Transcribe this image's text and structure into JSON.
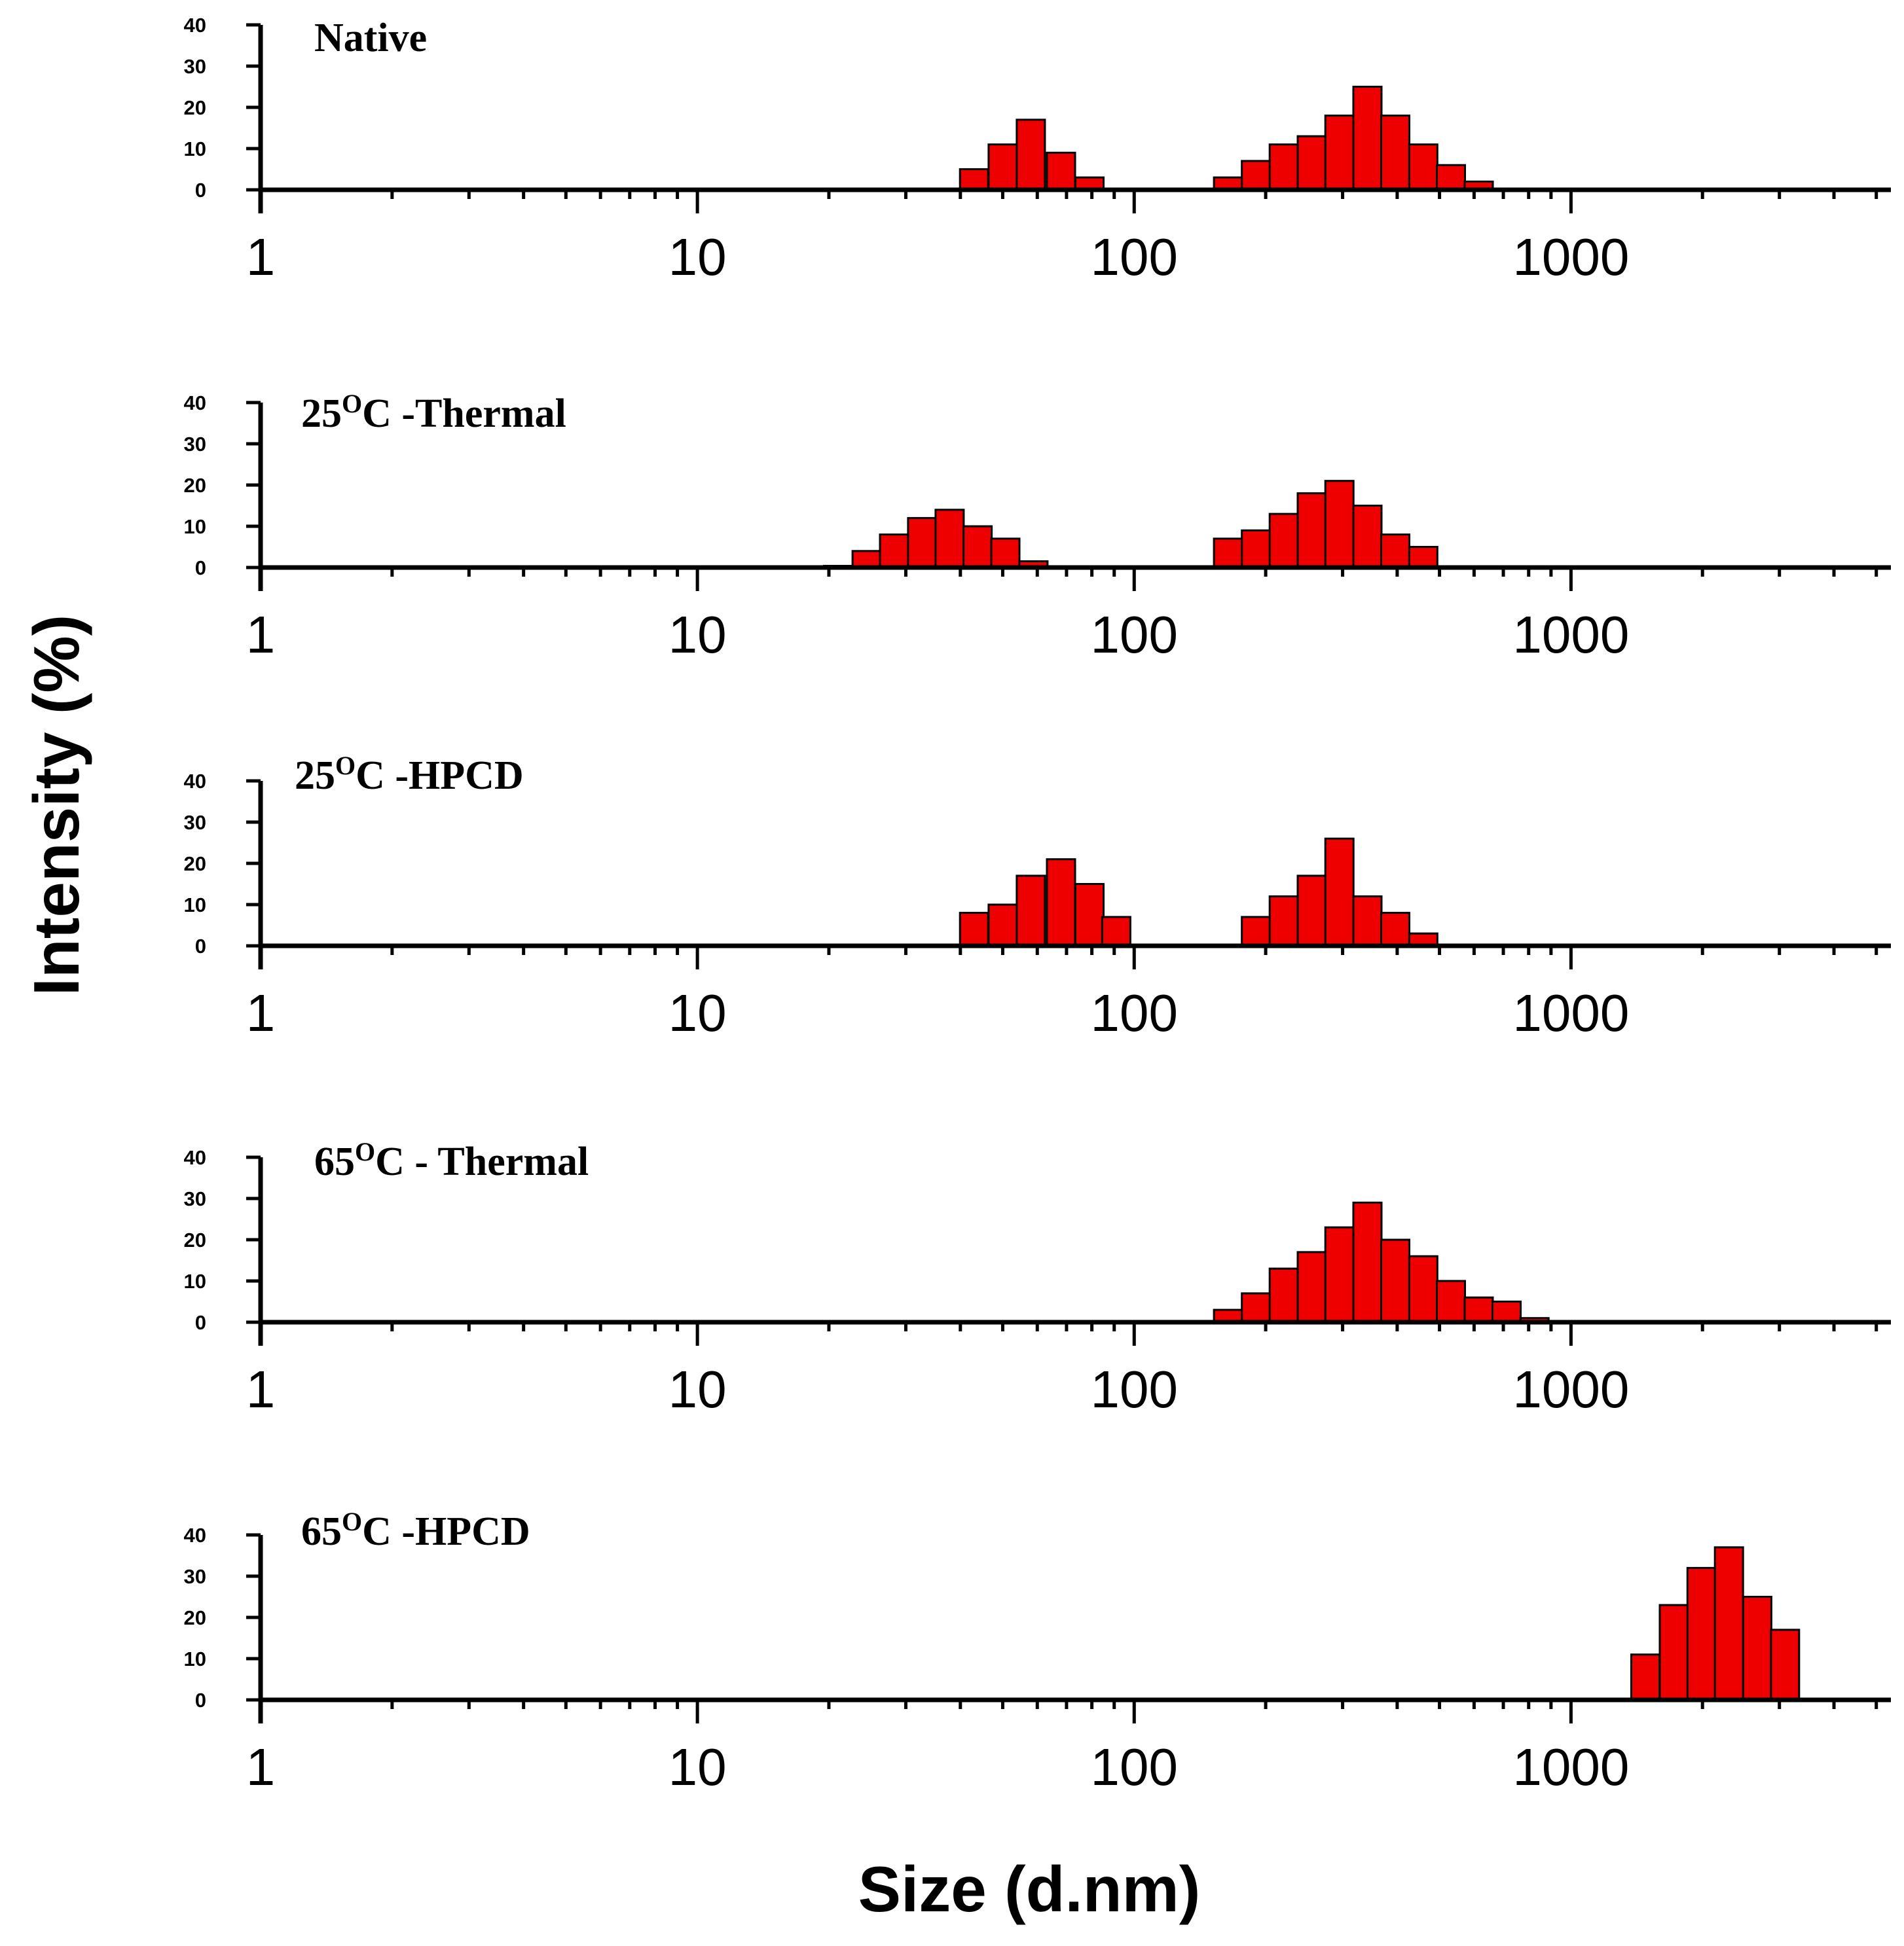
{
  "chart_data": [
    {
      "type": "bar",
      "title": "Native",
      "xscale": "log",
      "xlim": [
        1,
        5400
      ],
      "ylim": [
        0,
        40
      ],
      "yticks": [
        0,
        10,
        20,
        30,
        40
      ],
      "xticks": [
        1,
        10,
        100,
        1000
      ],
      "x": [
        43,
        50,
        58,
        68,
        79,
        164,
        190,
        220,
        255,
        295,
        342,
        396,
        459,
        531,
        615
      ],
      "values": [
        5,
        11,
        17,
        9,
        3,
        3,
        7,
        11,
        13,
        18,
        25,
        18,
        11,
        6,
        2
      ]
    },
    {
      "type": "bar",
      "title": "25ᴼC -Thermal",
      "title_parts": [
        "25",
        "O",
        "C -Thermal"
      ],
      "xscale": "log",
      "xlim": [
        1,
        5400
      ],
      "ylim": [
        0,
        40
      ],
      "yticks": [
        0,
        10,
        20,
        30,
        40
      ],
      "xticks": [
        1,
        10,
        100,
        1000
      ],
      "x": [
        18.2,
        21.0,
        24.4,
        28.2,
        32.7,
        37.8,
        43.8,
        50.7,
        58.8,
        164,
        190,
        220,
        255,
        295,
        342,
        396,
        459
      ],
      "values": [
        0.3,
        0.4,
        4,
        8,
        12,
        14,
        10,
        7,
        1.5,
        7,
        9,
        13,
        18,
        21,
        15,
        8,
        5
      ]
    },
    {
      "type": "bar",
      "title": "25ᴼC -HPCD",
      "title_parts": [
        "25",
        "O",
        "C -HPCD"
      ],
      "xscale": "log",
      "xlim": [
        1,
        5400
      ],
      "ylim": [
        0,
        40
      ],
      "yticks": [
        0,
        10,
        20,
        30,
        40
      ],
      "xticks": [
        1,
        10,
        100,
        1000
      ],
      "x": [
        43,
        50,
        58,
        68,
        79,
        91,
        190,
        220,
        255,
        295,
        342,
        396,
        459
      ],
      "values": [
        8,
        10,
        17,
        21,
        15,
        7,
        7,
        12,
        17,
        26,
        12,
        8,
        3
      ]
    },
    {
      "type": "bar",
      "title": "65ᴼC - Thermal",
      "title_parts": [
        "65",
        "O",
        "C - Thermal"
      ],
      "xscale": "log",
      "xlim": [
        1,
        5400
      ],
      "ylim": [
        0,
        40
      ],
      "yticks": [
        0,
        10,
        20,
        30,
        40
      ],
      "xticks": [
        1,
        10,
        100,
        1000
      ],
      "x": [
        164,
        190,
        220,
        255,
        295,
        342,
        396,
        459,
        531,
        615,
        712,
        825
      ],
      "values": [
        3,
        7,
        13,
        17,
        23,
        29,
        20,
        16,
        10,
        6,
        5,
        1
      ]
    },
    {
      "type": "bar",
      "title": "65ᴼC  -HPCD",
      "title_parts": [
        "65",
        "O",
        "C  -HPCD"
      ],
      "xscale": "log",
      "xlim": [
        1,
        5400
      ],
      "ylim": [
        0,
        40
      ],
      "yticks": [
        0,
        10,
        20,
        30,
        40
      ],
      "xticks": [
        1,
        10,
        100,
        1000
      ],
      "x": [
        1480,
        1720,
        1990,
        2300,
        2670,
        3090
      ],
      "values": [
        11,
        23,
        32,
        37,
        25,
        17
      ]
    }
  ],
  "axes": {
    "ylabel": "Intensity (%)",
    "xlabel": "Size (d.nm)"
  },
  "colors": {
    "bar_fill": "#ee0000",
    "bar_stroke": "#000000",
    "axis": "#000000"
  }
}
